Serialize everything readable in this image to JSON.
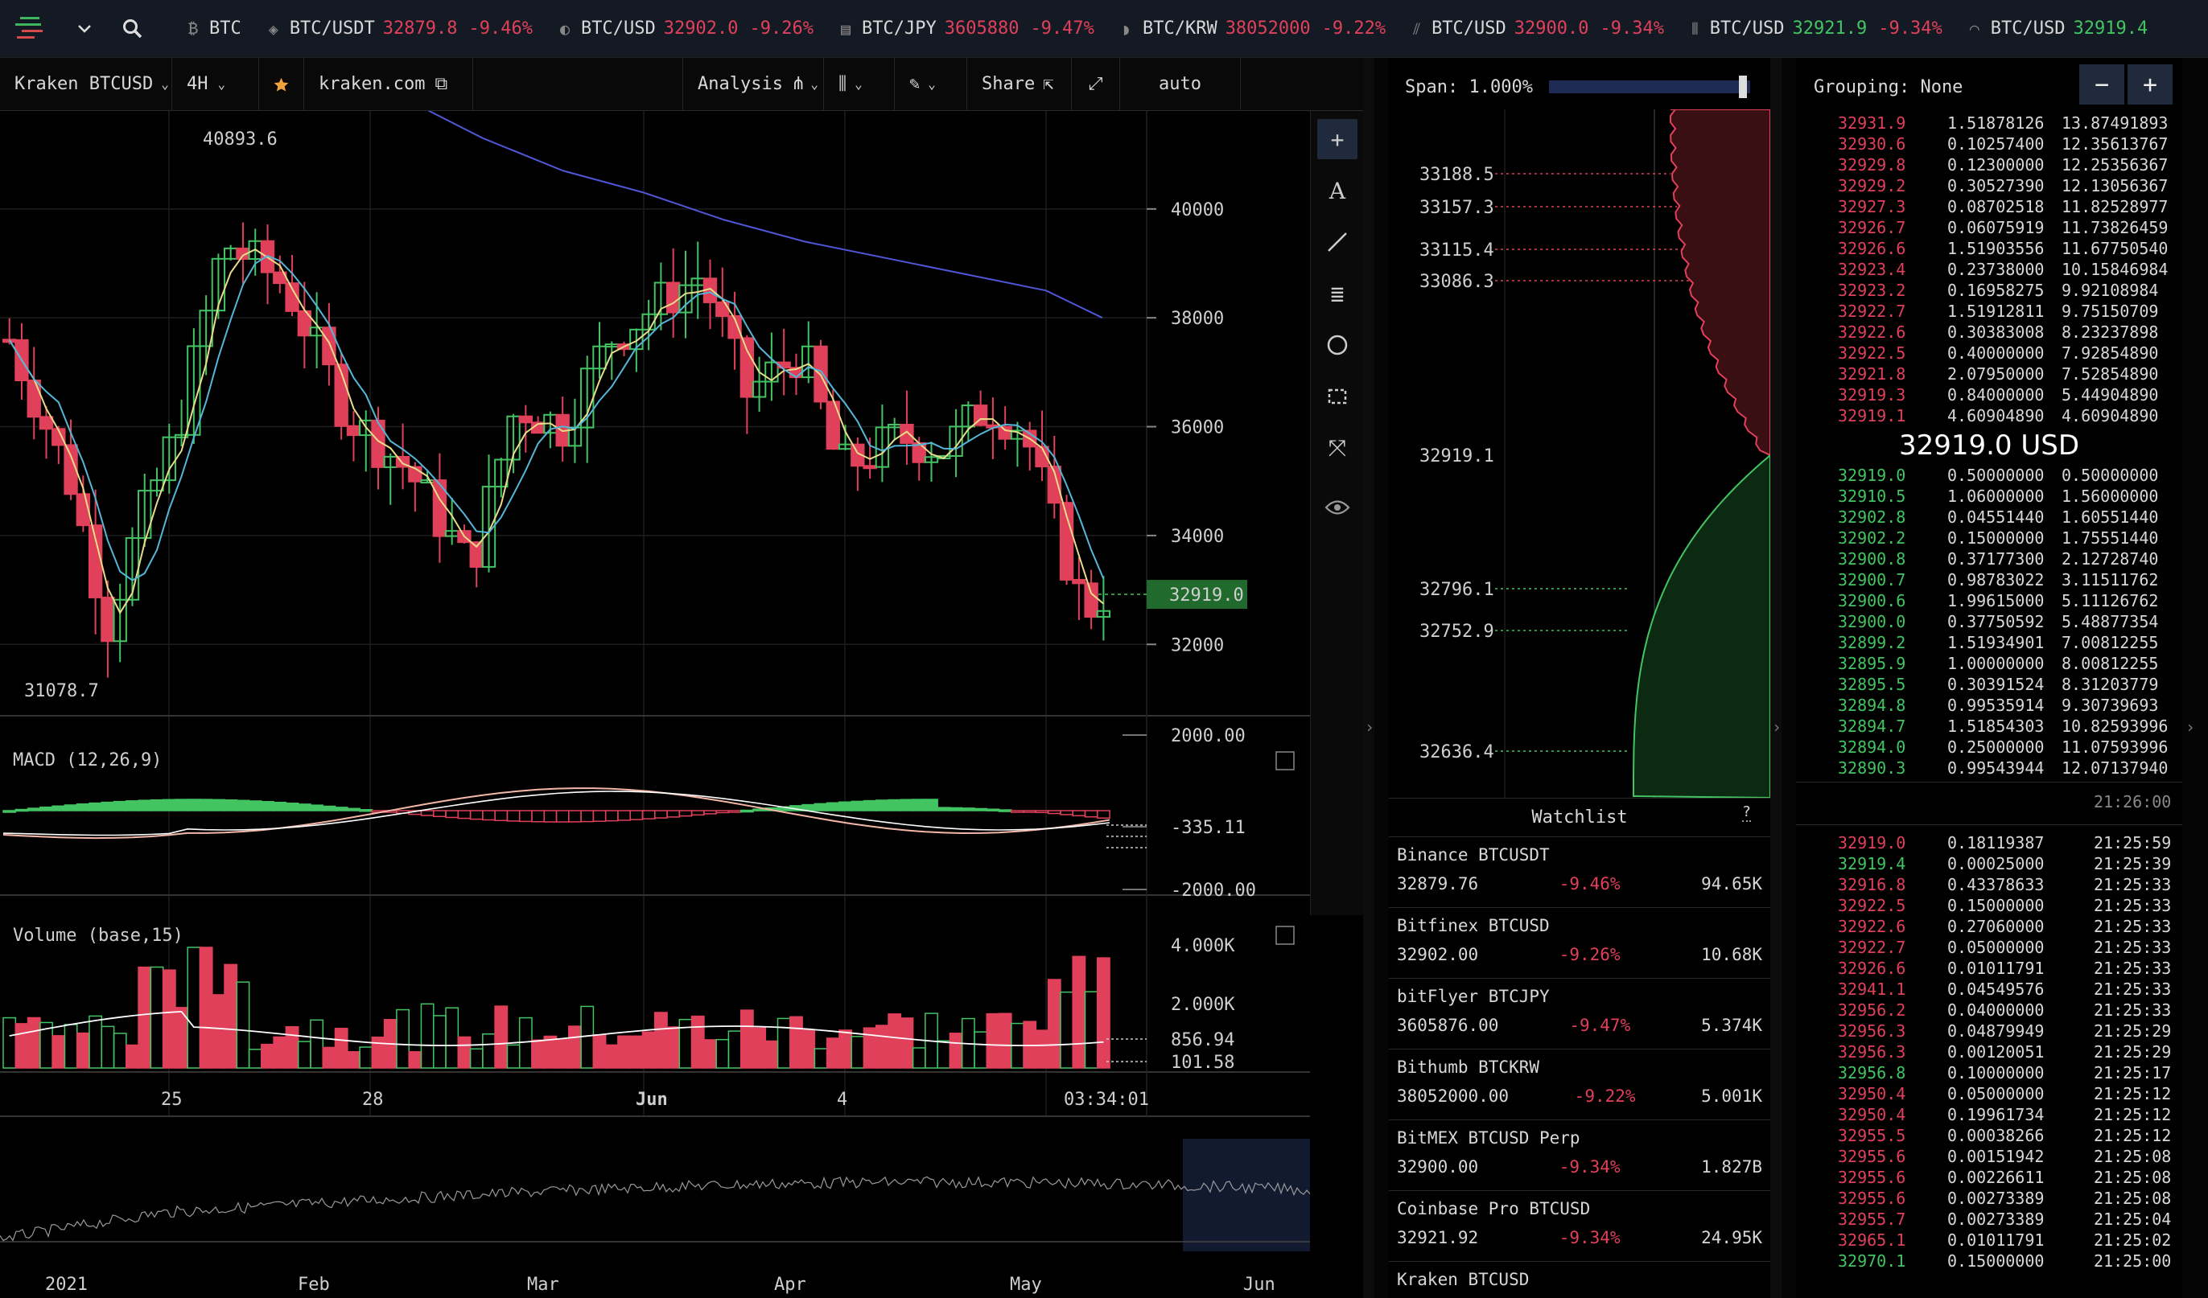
{
  "ticker": [
    {
      "symbol": "BTC",
      "price": "",
      "change": "",
      "up": false
    },
    {
      "symbol": "BTC/USDT",
      "price": "32879.8",
      "change": "-9.46%",
      "up": false
    },
    {
      "symbol": "BTC/USD",
      "price": "32902.0",
      "change": "-9.26%",
      "up": false
    },
    {
      "symbol": "BTC/JPY",
      "price": "3605880",
      "change": "-9.47%",
      "up": false
    },
    {
      "symbol": "BTC/KRW",
      "price": "38052000",
      "change": "-9.22%",
      "up": false
    },
    {
      "symbol": "BTC/USD",
      "price": "32900.0",
      "change": "-9.34%",
      "up": false
    },
    {
      "symbol": "BTC/USD",
      "price": "32921.9",
      "change": "-9.34%",
      "up": true
    },
    {
      "symbol": "BTC/USD",
      "price": "32919.4",
      "change": "",
      "up": true
    }
  ],
  "toolbar": {
    "market": "Kraken BTCUSD",
    "interval": "4H",
    "exchange_link": "kraken.com",
    "analysis": "Analysis",
    "share": "Share",
    "scale": "auto"
  },
  "main_chart": {
    "high_label": "40893.6",
    "low_label": "31078.7",
    "last_price": "32919.0",
    "y_ticks": [
      "40000",
      "38000",
      "36000",
      "34000",
      "32000"
    ],
    "x_ticks": [
      "25",
      "28",
      "Jun",
      "4"
    ],
    "time_label": "03:34:01"
  },
  "macd": {
    "title": "MACD (12,26,9)",
    "ticks": [
      "2000.00",
      "-335.11",
      "-2000.00"
    ]
  },
  "volume": {
    "title": "Volume (base,15)",
    "ticks": [
      "4.000K",
      "2.000K",
      "856.94",
      "101.58"
    ]
  },
  "navigator": {
    "labels": [
      "2021",
      "Feb",
      "Mar",
      "Apr",
      "May",
      "Jun"
    ]
  },
  "depth": {
    "span_label": "Span: 1.000%",
    "ask_levels": [
      "33188.5",
      "33157.3",
      "33115.4",
      "33086.3"
    ],
    "mid_level": "32919.1",
    "bid_levels": [
      "32796.1",
      "32752.9",
      "32636.4"
    ]
  },
  "watchlist": {
    "title": "Watchlist",
    "help": "?",
    "items": [
      {
        "name": "Binance BTCUSDT",
        "price": "32879.76",
        "change": "-9.46%",
        "volume": "94.65K"
      },
      {
        "name": "Bitfinex BTCUSD",
        "price": "32902.00",
        "change": "-9.26%",
        "volume": "10.68K"
      },
      {
        "name": "bitFlyer BTCJPY",
        "price": "3605876.00",
        "change": "-9.47%",
        "volume": "5.374K"
      },
      {
        "name": "Bithumb BTCKRW",
        "price": "38052000.00",
        "change": "-9.22%",
        "volume": "5.001K"
      },
      {
        "name": "BitMEX BTCUSD Perp",
        "price": "32900.00",
        "change": "-9.34%",
        "volume": "1.827B"
      },
      {
        "name": "Coinbase Pro BTCUSD",
        "price": "32921.92",
        "change": "-9.34%",
        "volume": "24.95K"
      },
      {
        "name": "Kraken BTCUSD",
        "price": "",
        "change": "",
        "volume": ""
      }
    ]
  },
  "orderbook": {
    "grouping": "Grouping: None",
    "minus": "−",
    "plus": "+",
    "mid_price": "32919.0 USD",
    "asks": [
      [
        "32931.9",
        "1.51878126",
        "13.87491893"
      ],
      [
        "32930.6",
        "0.10257400",
        "12.35613767"
      ],
      [
        "32929.8",
        "0.12300000",
        "12.25356367"
      ],
      [
        "32929.2",
        "0.30527390",
        "12.13056367"
      ],
      [
        "32927.3",
        "0.08702518",
        "11.82528977"
      ],
      [
        "32926.7",
        "0.06075919",
        "11.73826459"
      ],
      [
        "32926.6",
        "1.51903556",
        "11.67750540"
      ],
      [
        "32923.4",
        "0.23738000",
        "10.15846984"
      ],
      [
        "32923.2",
        "0.16958275",
        "9.92108984"
      ],
      [
        "32922.7",
        "1.51912811",
        "9.75150709"
      ],
      [
        "32922.6",
        "0.30383008",
        "8.23237898"
      ],
      [
        "32922.5",
        "0.40000000",
        "7.92854890"
      ],
      [
        "32921.8",
        "2.07950000",
        "7.52854890"
      ],
      [
        "32919.3",
        "0.84000000",
        "5.44904890"
      ],
      [
        "32919.1",
        "4.60904890",
        "4.60904890"
      ]
    ],
    "bids": [
      [
        "32919.0",
        "0.50000000",
        "0.50000000"
      ],
      [
        "32910.5",
        "1.06000000",
        "1.56000000"
      ],
      [
        "32902.8",
        "0.04551440",
        "1.60551440"
      ],
      [
        "32902.2",
        "0.15000000",
        "1.75551440"
      ],
      [
        "32900.8",
        "0.37177300",
        "2.12728740"
      ],
      [
        "32900.7",
        "0.98783022",
        "3.11511762"
      ],
      [
        "32900.6",
        "1.99615000",
        "5.11126762"
      ],
      [
        "32900.0",
        "0.37750592",
        "5.48877354"
      ],
      [
        "32899.2",
        "1.51934901",
        "7.00812255"
      ],
      [
        "32895.9",
        "1.00000000",
        "8.00812255"
      ],
      [
        "32895.5",
        "0.30391524",
        "8.31203779"
      ],
      [
        "32894.8",
        "0.99535914",
        "9.30739693"
      ],
      [
        "32894.7",
        "1.51854303",
        "10.82593996"
      ],
      [
        "32894.0",
        "0.25000000",
        "11.07593996"
      ],
      [
        "32890.3",
        "0.99543944",
        "12.07137940"
      ]
    ],
    "trades_time": "21:26:00",
    "trades": [
      [
        "32919.0",
        "0.18119387",
        "21:25:59",
        "s"
      ],
      [
        "32919.4",
        "0.00025000",
        "21:25:39",
        "b"
      ],
      [
        "32916.8",
        "0.43378633",
        "21:25:33",
        "s"
      ],
      [
        "32922.5",
        "0.15000000",
        "21:25:33",
        "s"
      ],
      [
        "32922.6",
        "0.27060000",
        "21:25:33",
        "s"
      ],
      [
        "32922.7",
        "0.05000000",
        "21:25:33",
        "s"
      ],
      [
        "32926.6",
        "0.01011791",
        "21:25:33",
        "s"
      ],
      [
        "32941.1",
        "0.04549576",
        "21:25:33",
        "s"
      ],
      [
        "32956.2",
        "0.04000000",
        "21:25:33",
        "s"
      ],
      [
        "32956.3",
        "0.04879949",
        "21:25:29",
        "s"
      ],
      [
        "32956.3",
        "0.00120051",
        "21:25:29",
        "s"
      ],
      [
        "32956.8",
        "0.10000000",
        "21:25:17",
        "b"
      ],
      [
        "32950.4",
        "0.05000000",
        "21:25:12",
        "s"
      ],
      [
        "32950.4",
        "0.19961734",
        "21:25:12",
        "s"
      ],
      [
        "32955.5",
        "0.00038266",
        "21:25:12",
        "s"
      ],
      [
        "32955.6",
        "0.00151942",
        "21:25:08",
        "s"
      ],
      [
        "32955.6",
        "0.00226611",
        "21:25:08",
        "s"
      ],
      [
        "32955.6",
        "0.00273389",
        "21:25:08",
        "s"
      ],
      [
        "32955.7",
        "0.00273389",
        "21:25:04",
        "s"
      ],
      [
        "32965.1",
        "0.01011791",
        "21:25:02",
        "s"
      ],
      [
        "32970.1",
        "0.15000000",
        "21:25:00",
        "b"
      ]
    ]
  },
  "colors": {
    "up": "#43c463",
    "down": "#e0405a",
    "sma_slow": "#4f57d6",
    "sma_mid": "#55b6d8",
    "sma_fast": "#e8dc8a",
    "accent": "#1f2a3c"
  }
}
